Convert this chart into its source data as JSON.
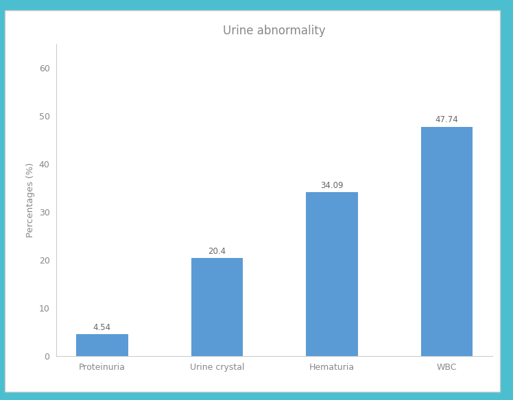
{
  "title": "Urine abnormality",
  "categories": [
    "Proteinuria",
    "Urine crystal",
    "Hematuria",
    "WBC"
  ],
  "values": [
    4.54,
    20.4,
    34.09,
    47.74
  ],
  "bar_color": "#5b9bd5",
  "ylabel": "Percentages (%)",
  "ylim": [
    0,
    65
  ],
  "yticks": [
    0,
    10,
    20,
    30,
    40,
    50,
    60
  ],
  "title_fontsize": 12,
  "label_fontsize": 9.5,
  "tick_fontsize": 9,
  "value_fontsize": 8.5,
  "background_color": "#ffffff",
  "outer_background": "#4bbfcf",
  "inner_background": "#f5f5f5",
  "bar_width": 0.45,
  "value_color": "#666666",
  "axis_color": "#cccccc",
  "tick_color": "#888888",
  "title_color": "#888888",
  "border_color": "#cccccc"
}
